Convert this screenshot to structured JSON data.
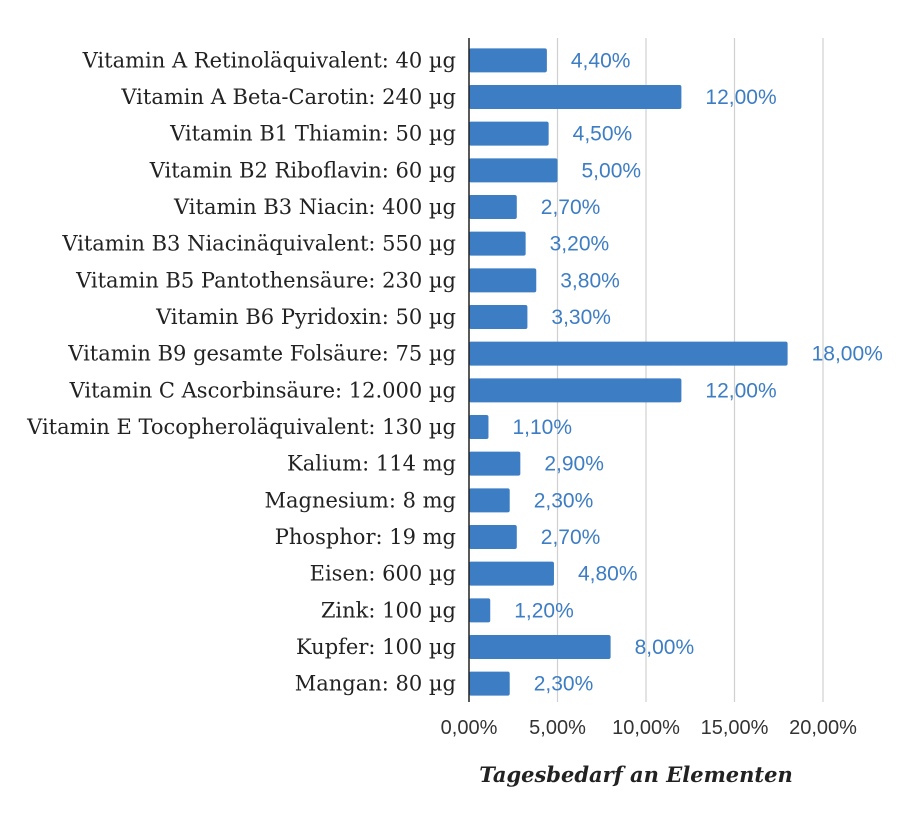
{
  "chart_data": {
    "type": "bar",
    "orientation": "horizontal",
    "categories": [
      "Vitamin A Retinoläquivalent: 40 µg",
      "Vitamin A Beta-Carotin: 240 µg",
      "Vitamin B1 Thiamin: 50 µg",
      "Vitamin B2 Riboflavin: 60 µg",
      "Vitamin B3 Niacin: 400 µg",
      "Vitamin B3 Niacinäquivalent: 550 µg",
      "Vitamin B5 Pantothensäure: 230 µg",
      "Vitamin B6 Pyridoxin: 50 µg",
      "Vitamin B9 gesamte Folsäure: 75 µg",
      "Vitamin C Ascorbinsäure: 12.000 µg",
      "Vitamin E Tocopheroläquivalent: 130 µg",
      "Kalium: 114 mg",
      "Magnesium: 8 mg",
      "Phosphor: 19 mg",
      "Eisen: 600 µg",
      "Zink: 100 µg",
      "Kupfer: 100 µg",
      "Mangan: 80 µg"
    ],
    "values": [
      4.4,
      12.0,
      4.5,
      5.0,
      2.7,
      3.2,
      3.8,
      3.3,
      18.0,
      12.0,
      1.1,
      2.9,
      2.3,
      2.7,
      4.8,
      1.2,
      8.0,
      2.3
    ],
    "value_labels": [
      "4,40%",
      "12,00%",
      "4,50%",
      "5,00%",
      "2,70%",
      "3,20%",
      "3,80%",
      "3,30%",
      "18,00%",
      "12,00%",
      "1,10%",
      "2,90%",
      "2,30%",
      "2,70%",
      "4,80%",
      "1,20%",
      "8,00%",
      "2,30%"
    ],
    "xlim": [
      0,
      20
    ],
    "xticks": [
      0,
      5,
      10,
      15,
      20
    ],
    "xtick_labels": [
      "0,00%",
      "5,00%",
      "10,00%",
      "15,00%",
      "20,00%"
    ],
    "xlabel": "Tagesbedarf an Elementen",
    "ylabel": "",
    "title": "",
    "grid": "vertical",
    "legend": "none",
    "colors": {
      "bar": "#3c7dc4",
      "value_label": "#3c7dc4",
      "grid": "#d0d0d0",
      "axis": "#222222"
    }
  }
}
